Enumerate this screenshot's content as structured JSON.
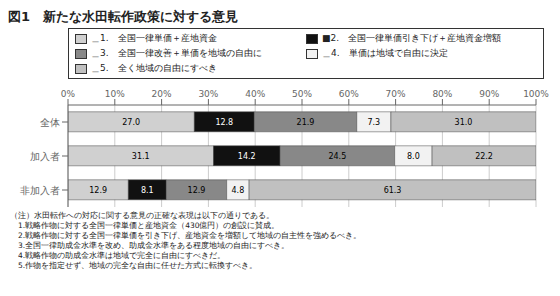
{
  "chart_data": {
    "type": "bar",
    "orientation": "horizontal",
    "stacked": true,
    "data_labels": true,
    "grid": true,
    "legend": "top",
    "title": "図1　新たな水田転作政策に対する意見",
    "categories": [
      "全体",
      "加入者",
      "非加入者"
    ],
    "series": [
      {
        "name": "＿1.　全国一律単価＋産地資金",
        "color": "#d0d0d0",
        "values": [
          27.0,
          31.1,
          12.9
        ],
        "value_labels": [
          "27.0",
          "31.1",
          "12.9"
        ]
      },
      {
        "name": "■2.　全国一律単価引き下げ＋産地資金増額",
        "color": "#111111",
        "values": [
          12.8,
          14.2,
          8.1
        ],
        "value_labels": [
          "12.8",
          "14.2",
          "8.1"
        ]
      },
      {
        "name": "＿3.　全国一律改善＋単価を地域の自由に",
        "color": "#888888",
        "values": [
          21.9,
          24.5,
          12.9
        ],
        "value_labels": [
          "21.9",
          "24.5",
          "12.9"
        ]
      },
      {
        "name": "＿4.　単価は地域で自由に決定",
        "color": "#f2f2f2",
        "values": [
          7.3,
          8.0,
          4.8
        ],
        "value_labels": [
          "7.3",
          "8.0",
          "4.8"
        ]
      },
      {
        "name": "＿5.　全く地域の自由にすべき",
        "color": "#c0c0c0",
        "values": [
          31.0,
          22.2,
          61.3
        ],
        "value_labels": [
          "31.0",
          "22.2",
          "61.3"
        ]
      }
    ],
    "xlim": [
      0,
      100
    ],
    "xticks": [
      {
        "value": 0,
        "label": "0%"
      },
      {
        "value": 10,
        "label": "10%"
      },
      {
        "value": 20,
        "label": "20%"
      },
      {
        "value": 30,
        "label": "30%"
      },
      {
        "value": 40,
        "label": "40%"
      },
      {
        "value": 50,
        "label": "50%"
      },
      {
        "value": 60,
        "label": "60%"
      },
      {
        "value": 70,
        "label": "70%"
      },
      {
        "value": 80,
        "label": "80%"
      },
      {
        "value": 90,
        "label": "90%"
      },
      {
        "value": 100,
        "label": "100%"
      }
    ],
    "annotations": [
      "（注）水田転作への対応に関する意見の正確な表現は以下の通りである。",
      "　1.戦略作物に対する全国一律単価と産地資金（430億円）の創設に賛成。",
      "　2.戦略作物に対する全国一律単価を引き下げ、産地資金を増額して地域の自主性を強めるべき。",
      "　3.全国一律助成金水準を改め、助成金水準をある程度地域の自由にすべき。",
      "　4.戦略作物の助成金水準は地域で完全に自由にすべきだ。",
      "　5.作物を指定せず、地域の完全な自由に任せた方式に転換すべき。"
    ]
  }
}
